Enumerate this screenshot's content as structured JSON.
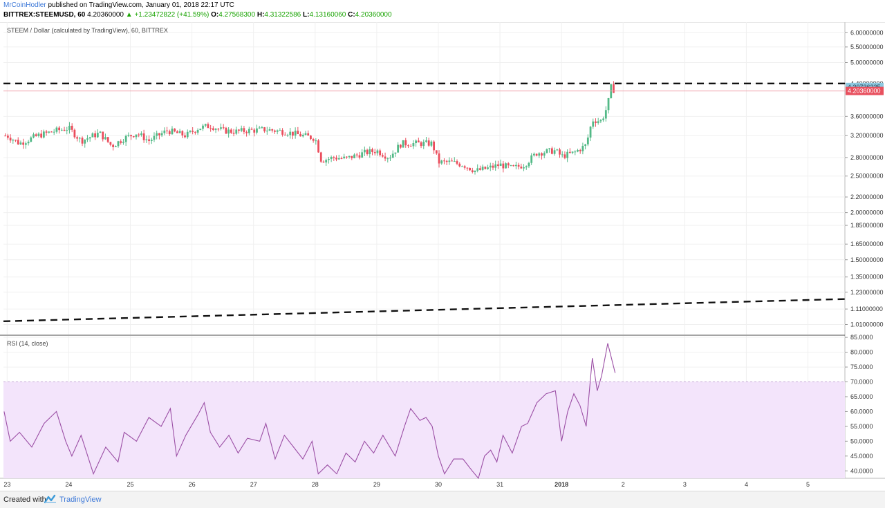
{
  "header": {
    "author": "MrCoinHodler",
    "published_text": "published on TradingView.com, January 01, 2018 22:17 UTC",
    "symbol": "BITTREX:STEEMUSD, 60",
    "price": "4.20360000",
    "arrow": "▲",
    "change": "+1.23472822 (+41.59%)",
    "o_label": "O:",
    "o_value": "4.27568300",
    "h_label": "H:",
    "h_value": "4.31322586",
    "l_label": "L:",
    "l_value": "4.13160060",
    "c_label": "C:",
    "c_value": "4.20360000"
  },
  "footer": {
    "created_with": "Created with",
    "brand": "TradingView",
    "logo_icon": "tradingview-logo-icon"
  },
  "chart_data": {
    "type": "candlestick",
    "title": "STEEM / Dollar (calculated by TradingView), 60, BITTREX",
    "price_axis": {
      "scale": "log",
      "range": [
        0.95,
        6.4
      ],
      "tick_labels": [
        "6.00000000",
        "5.50000000",
        "5.00000000",
        "4.40000000",
        "3.60000000",
        "3.20000000",
        "2.80000000",
        "2.50000000",
        "2.20000000",
        "2.00000000",
        "1.85000000",
        "1.65000000",
        "1.50000000",
        "1.35000000",
        "1.23000000",
        "1.11000000",
        "1.01000000"
      ],
      "tick_values": [
        6.0,
        5.5,
        5.0,
        4.4,
        3.6,
        3.2,
        2.8,
        2.5,
        2.2,
        2.0,
        1.85,
        1.65,
        1.5,
        1.35,
        1.23,
        1.11,
        1.01
      ]
    },
    "time_axis": {
      "range_days": [
        22.94,
        36.6
      ],
      "tick_labels": [
        "23",
        "24",
        "25",
        "26",
        "27",
        "28",
        "29",
        "30",
        "31",
        "2018",
        "2",
        "3",
        "4",
        "5"
      ],
      "tick_days": [
        23,
        24,
        25,
        26,
        27,
        28,
        29,
        30,
        31,
        32,
        33,
        34,
        35,
        36
      ]
    },
    "price_labels": {
      "high_label": "4.30736235",
      "high_value": 4.30736235,
      "last_label": "4.20360000",
      "last_value": 4.2036
    },
    "drawn_lines": [
      {
        "name": "resistance",
        "style": "dashed",
        "points": [
          [
            22.94,
            4.4
          ],
          [
            36.6,
            4.4
          ]
        ]
      },
      {
        "name": "support",
        "style": "dashed",
        "points": [
          [
            22.94,
            1.03
          ],
          [
            36.6,
            1.18
          ]
        ]
      }
    ],
    "price_anchors": [
      [
        23.0,
        3.2
      ],
      [
        23.2,
        3.05
      ],
      [
        23.5,
        3.2
      ],
      [
        23.8,
        3.3
      ],
      [
        24.0,
        3.35
      ],
      [
        24.2,
        3.1
      ],
      [
        24.5,
        3.25
      ],
      [
        24.7,
        3.0
      ],
      [
        24.9,
        3.15
      ],
      [
        25.1,
        3.25
      ],
      [
        25.3,
        3.1
      ],
      [
        25.6,
        3.3
      ],
      [
        25.9,
        3.2
      ],
      [
        26.1,
        3.35
      ],
      [
        26.3,
        3.4
      ],
      [
        26.5,
        3.3
      ],
      [
        26.7,
        3.28
      ],
      [
        26.9,
        3.3
      ],
      [
        27.2,
        3.32
      ],
      [
        27.5,
        3.28
      ],
      [
        27.8,
        3.2
      ],
      [
        28.0,
        3.15
      ],
      [
        28.1,
        2.75
      ],
      [
        28.3,
        2.8
      ],
      [
        28.5,
        2.78
      ],
      [
        28.8,
        2.88
      ],
      [
        29.0,
        2.92
      ],
      [
        29.2,
        2.8
      ],
      [
        29.4,
        3.05
      ],
      [
        29.6,
        3.05
      ],
      [
        29.9,
        3.05
      ],
      [
        30.0,
        2.72
      ],
      [
        30.2,
        2.72
      ],
      [
        30.4,
        2.68
      ],
      [
        30.6,
        2.58
      ],
      [
        30.8,
        2.62
      ],
      [
        31.0,
        2.68
      ],
      [
        31.2,
        2.62
      ],
      [
        31.4,
        2.68
      ],
      [
        31.6,
        2.88
      ],
      [
        31.9,
        2.92
      ],
      [
        32.0,
        2.82
      ],
      [
        32.2,
        2.88
      ],
      [
        32.4,
        3.02
      ],
      [
        32.5,
        3.52
      ],
      [
        32.65,
        3.5
      ],
      [
        32.75,
        3.85
      ],
      [
        32.8,
        4.3
      ],
      [
        32.87,
        4.2
      ]
    ],
    "rsi_panel": {
      "title": "RSI (14, close)",
      "y_range": [
        37.5,
        85.5
      ],
      "tick_labels": [
        "85.0000",
        "80.0000",
        "75.0000",
        "70.0000",
        "65.0000",
        "60.0000",
        "55.0000",
        "50.0000",
        "45.0000",
        "40.0000"
      ],
      "tick_values": [
        85,
        80,
        75,
        70,
        65,
        60,
        55,
        50,
        45,
        40
      ],
      "band": [
        30,
        70
      ],
      "rsi_anchors": [
        [
          22.95,
          60
        ],
        [
          23.05,
          50
        ],
        [
          23.2,
          53
        ],
        [
          23.4,
          48
        ],
        [
          23.6,
          56
        ],
        [
          23.8,
          60
        ],
        [
          23.95,
          50
        ],
        [
          24.05,
          45
        ],
        [
          24.2,
          52
        ],
        [
          24.4,
          39
        ],
        [
          24.6,
          48
        ],
        [
          24.8,
          43
        ],
        [
          24.9,
          53
        ],
        [
          25.1,
          50
        ],
        [
          25.3,
          58
        ],
        [
          25.5,
          55
        ],
        [
          25.65,
          61
        ],
        [
          25.75,
          45
        ],
        [
          25.9,
          52
        ],
        [
          26.1,
          59
        ],
        [
          26.2,
          63
        ],
        [
          26.3,
          53
        ],
        [
          26.45,
          48
        ],
        [
          26.6,
          52
        ],
        [
          26.75,
          46
        ],
        [
          26.9,
          51
        ],
        [
          27.1,
          50
        ],
        [
          27.2,
          56
        ],
        [
          27.35,
          44
        ],
        [
          27.5,
          52
        ],
        [
          27.65,
          48
        ],
        [
          27.8,
          44
        ],
        [
          27.95,
          50
        ],
        [
          28.05,
          39
        ],
        [
          28.2,
          42
        ],
        [
          28.35,
          39
        ],
        [
          28.5,
          46
        ],
        [
          28.65,
          43
        ],
        [
          28.8,
          50
        ],
        [
          28.95,
          46
        ],
        [
          29.1,
          52
        ],
        [
          29.3,
          45
        ],
        [
          29.45,
          55
        ],
        [
          29.55,
          61
        ],
        [
          29.7,
          57
        ],
        [
          29.8,
          58
        ],
        [
          29.9,
          55
        ],
        [
          30.0,
          45
        ],
        [
          30.1,
          39
        ],
        [
          30.25,
          44
        ],
        [
          30.4,
          44
        ],
        [
          30.55,
          40
        ],
        [
          30.65,
          37
        ],
        [
          30.75,
          45
        ],
        [
          30.85,
          47
        ],
        [
          30.95,
          43
        ],
        [
          31.05,
          52
        ],
        [
          31.2,
          46
        ],
        [
          31.35,
          55
        ],
        [
          31.45,
          56
        ],
        [
          31.6,
          63
        ],
        [
          31.75,
          66
        ],
        [
          31.9,
          67
        ],
        [
          32.0,
          50
        ],
        [
          32.1,
          60
        ],
        [
          32.2,
          66
        ],
        [
          32.3,
          62
        ],
        [
          32.4,
          55
        ],
        [
          32.5,
          78
        ],
        [
          32.58,
          67
        ],
        [
          32.65,
          72
        ],
        [
          32.75,
          83
        ],
        [
          32.87,
          73
        ]
      ]
    }
  }
}
